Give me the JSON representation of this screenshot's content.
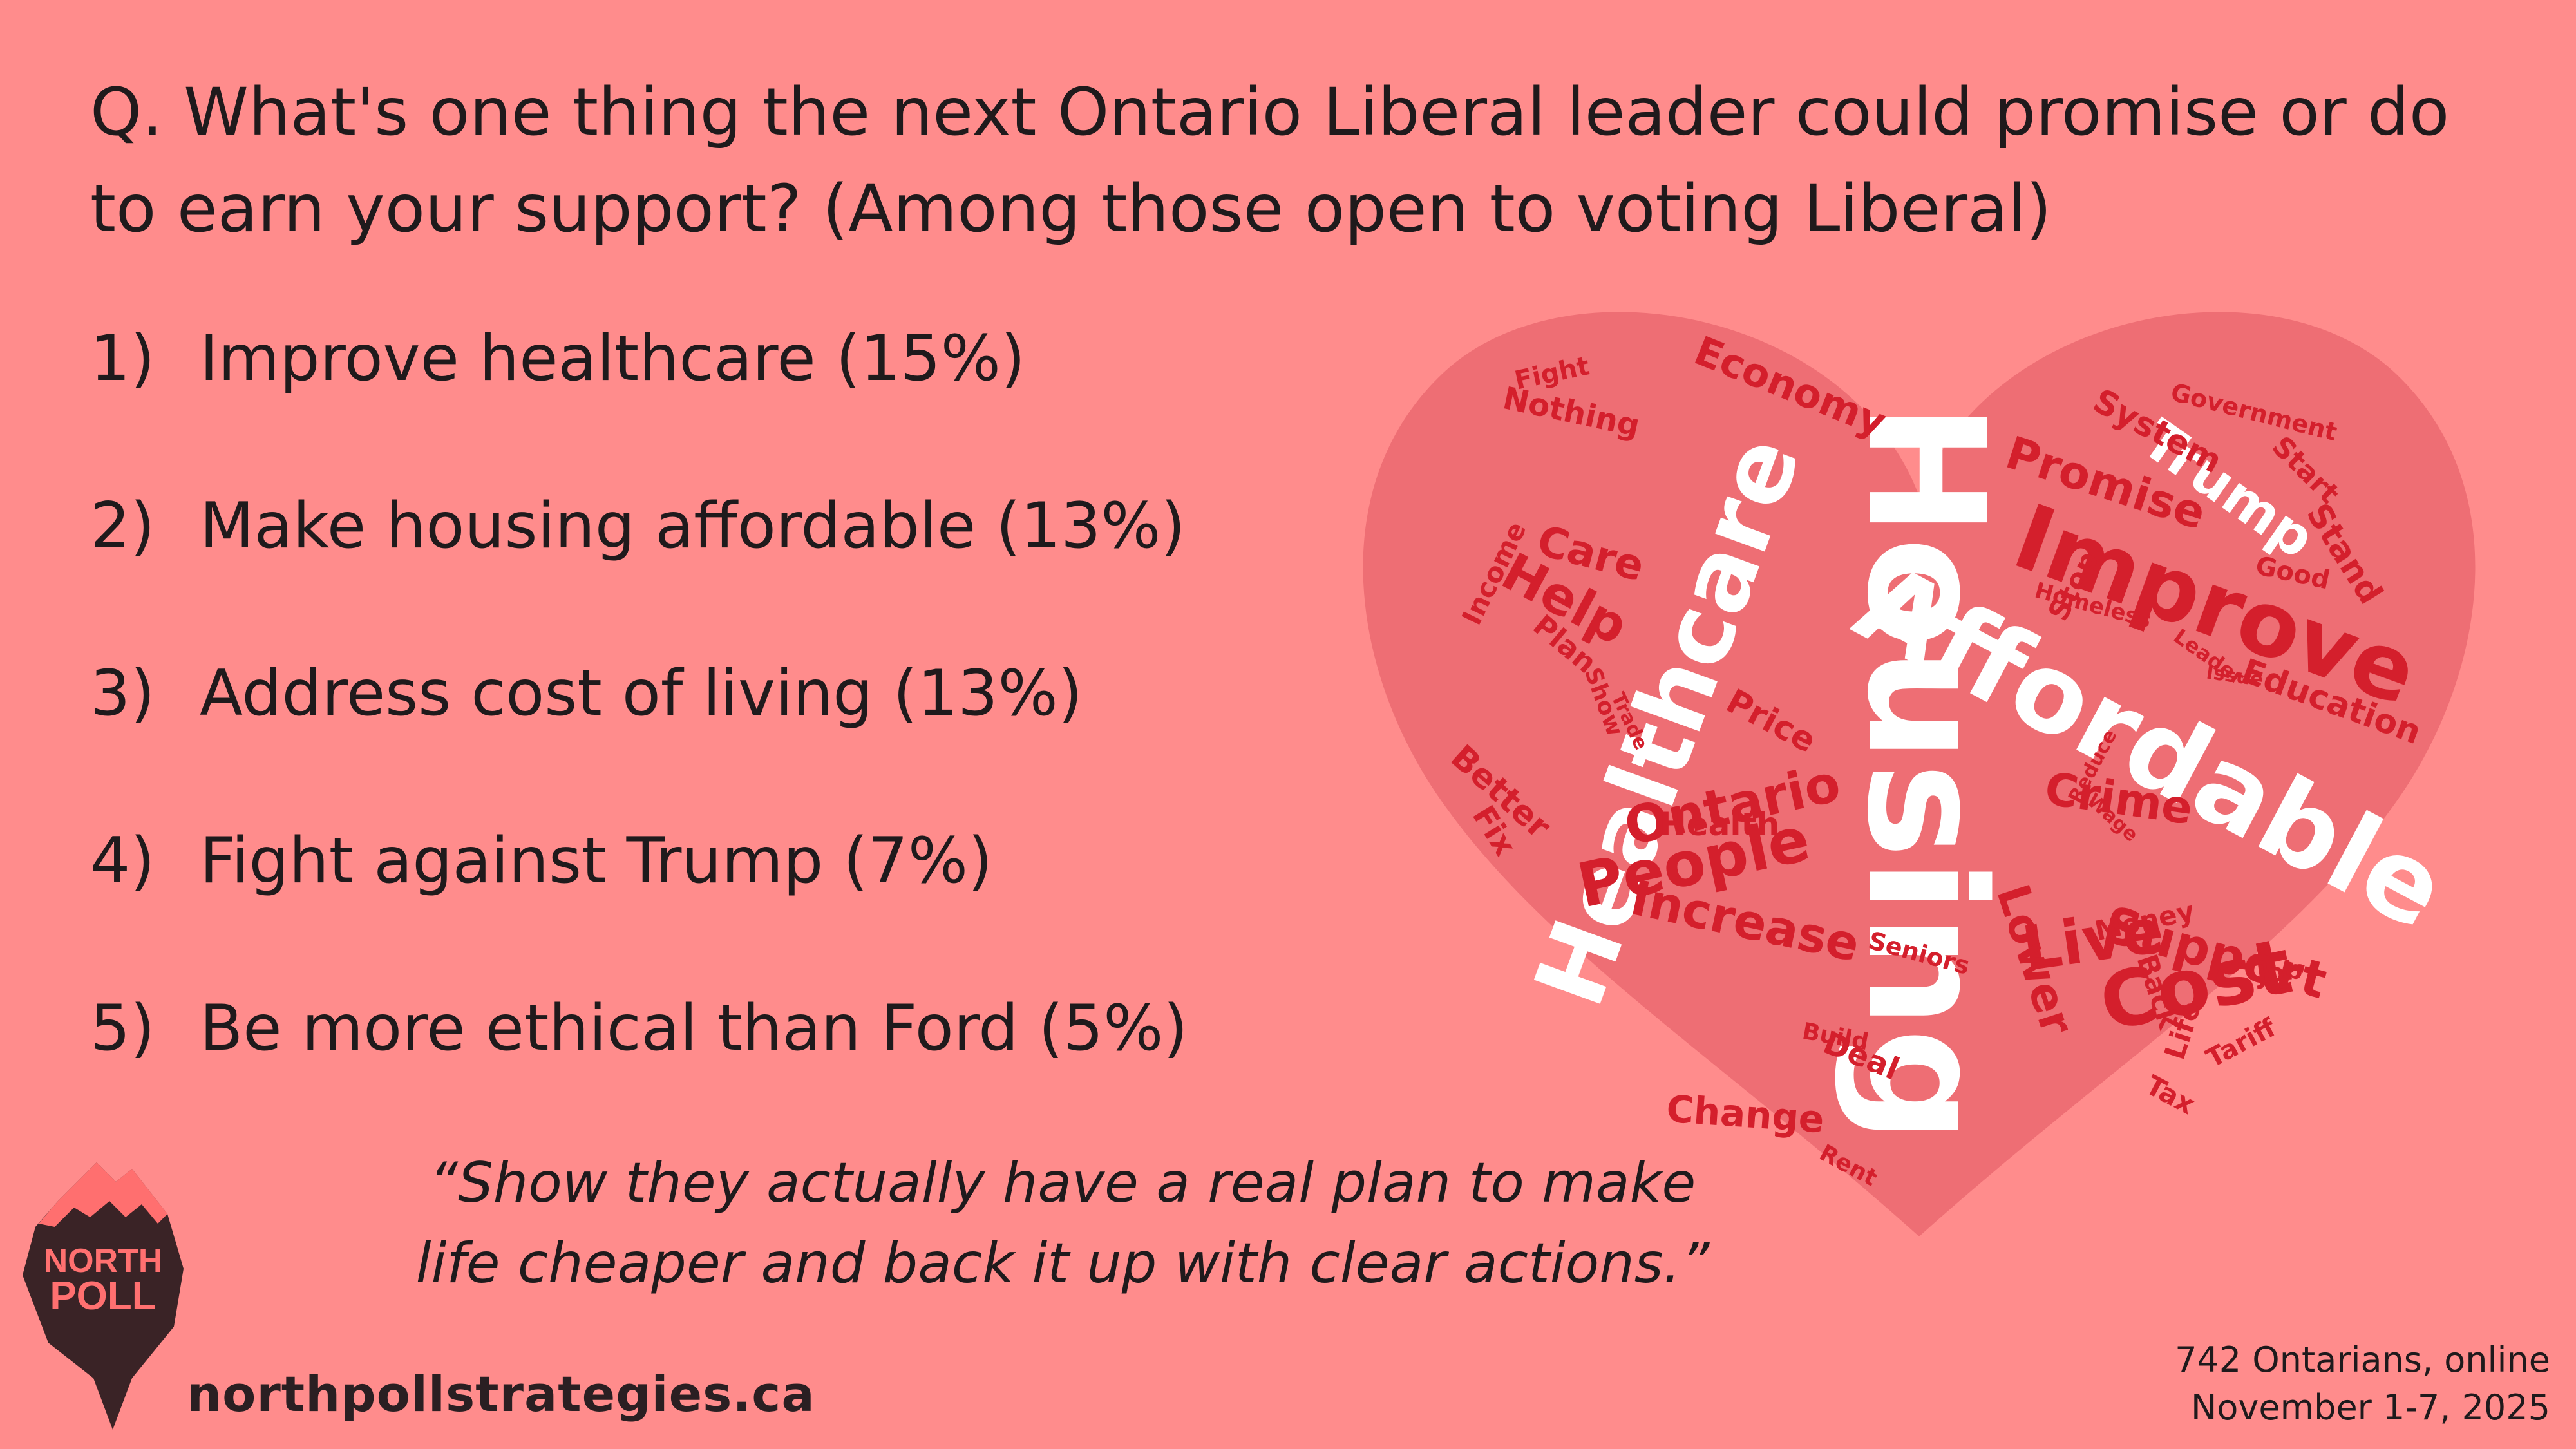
{
  "question": "Q. What's one thing the next Ontario Liberal leader could promise or do to earn your support? (Among those open to voting Liberal)",
  "responses": [
    {
      "number": "1)",
      "text": "Improve healthcare (15%)"
    },
    {
      "number": "2)",
      "text": "Make housing affordable (13%)"
    },
    {
      "number": "3)",
      "text": "Address cost of living (13%)"
    },
    {
      "number": "4)",
      "text": "Fight against Trump (7%)"
    },
    {
      "number": "5)",
      "text": "Be more ethical than Ford (5%)"
    }
  ],
  "quote_line1": "“Show they actually have a real plan to make",
  "quote_line2": "life cheaper and back it up with clear actions.”",
  "logo": {
    "line1": "NORTH",
    "line2": "POLL"
  },
  "website": "northpollstrategies.ca",
  "sample_line1": "742 Ontarians, online",
  "sample_line2": "November 1-7, 2025",
  "word_cloud": {
    "words": [
      "Housing",
      "Healthcare",
      "Affordable",
      "Improve",
      "Cost",
      "Live",
      "Support",
      "People",
      "Ontario",
      "Increase",
      "Crime",
      "Promise",
      "Trump",
      "Lower",
      "Help",
      "Care",
      "Economy",
      "Price",
      "Health",
      "Change",
      "Education",
      "Better",
      "Fix",
      "Fight",
      "Nothing",
      "Income",
      "Plan",
      "Show",
      "Trade",
      "Stop",
      "System",
      "Government",
      "Start",
      "Stand",
      "Good",
      "Homeless",
      "Leader",
      "Issue",
      "Reduce",
      "Wage",
      "Money",
      "Seniors",
      "Job",
      "Back",
      "Life",
      "Tariff",
      "Tax",
      "Build",
      "Deal",
      "Rent"
    ]
  },
  "colors": {
    "background": "#FF8C8C",
    "heart": "#EE6E74",
    "word_red": "#D41F2C",
    "word_white": "#FFFFFF",
    "text": "#1F1A1C"
  }
}
